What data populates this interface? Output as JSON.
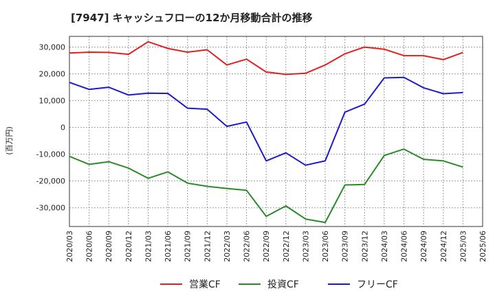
{
  "chart_data": {
    "type": "line",
    "title": "[7947]  キャッシュフローの12か月移動合計の推移",
    "ylabel": "(百万円)",
    "xlabel": "",
    "x": [
      "2020/03",
      "2020/06",
      "2020/09",
      "2020/12",
      "2021/03",
      "2021/06",
      "2021/09",
      "2021/12",
      "2022/03",
      "2022/06",
      "2022/09",
      "2022/12",
      "2023/03",
      "2023/06",
      "2023/09",
      "2023/12",
      "2024/03",
      "2024/06",
      "2024/09",
      "2024/12",
      "2025/03"
    ],
    "x_ticks": [
      "2020/03",
      "2020/06",
      "2020/09",
      "2020/12",
      "2021/03",
      "2021/06",
      "2021/09",
      "2021/12",
      "2022/03",
      "2022/06",
      "2022/09",
      "2022/12",
      "2023/03",
      "2023/06",
      "2023/09",
      "2023/12",
      "2024/03",
      "2024/06",
      "2024/09",
      "2024/12",
      "2025/03",
      "2025/06"
    ],
    "y_ticks": [
      30000,
      20000,
      10000,
      0,
      -10000,
      -20000,
      -30000
    ],
    "y_tick_labels": [
      "30,000",
      "20,000",
      "10,000",
      "0",
      "-10,000",
      "-20,000",
      "-30,000"
    ],
    "ylim": [
      -37000,
      34000
    ],
    "grid": true,
    "legend_position": "bottom",
    "series": [
      {
        "name": "営業CF",
        "color": "#e02020",
        "values": [
          27800,
          28100,
          28000,
          27300,
          32000,
          29500,
          28100,
          29000,
          23300,
          25500,
          20700,
          19800,
          20200,
          23300,
          27500,
          30000,
          29200,
          26800,
          26800,
          25300,
          28000
        ]
      },
      {
        "name": "投資CF",
        "color": "#2a8a2a",
        "values": [
          -10800,
          -13800,
          -12800,
          -15200,
          -19000,
          -16600,
          -20800,
          -22000,
          -22800,
          -23500,
          -33200,
          -29300,
          -34200,
          -35500,
          -21500,
          -21300,
          -10500,
          -8100,
          -11900,
          -12500,
          -14800
        ]
      },
      {
        "name": "フリーCF",
        "color": "#1a1acc",
        "values": [
          16800,
          14200,
          15000,
          12100,
          12800,
          12700,
          7200,
          6800,
          400,
          2000,
          -12500,
          -9500,
          -14100,
          -12500,
          5700,
          8700,
          18500,
          18700,
          14800,
          12600,
          13000
        ]
      }
    ]
  }
}
